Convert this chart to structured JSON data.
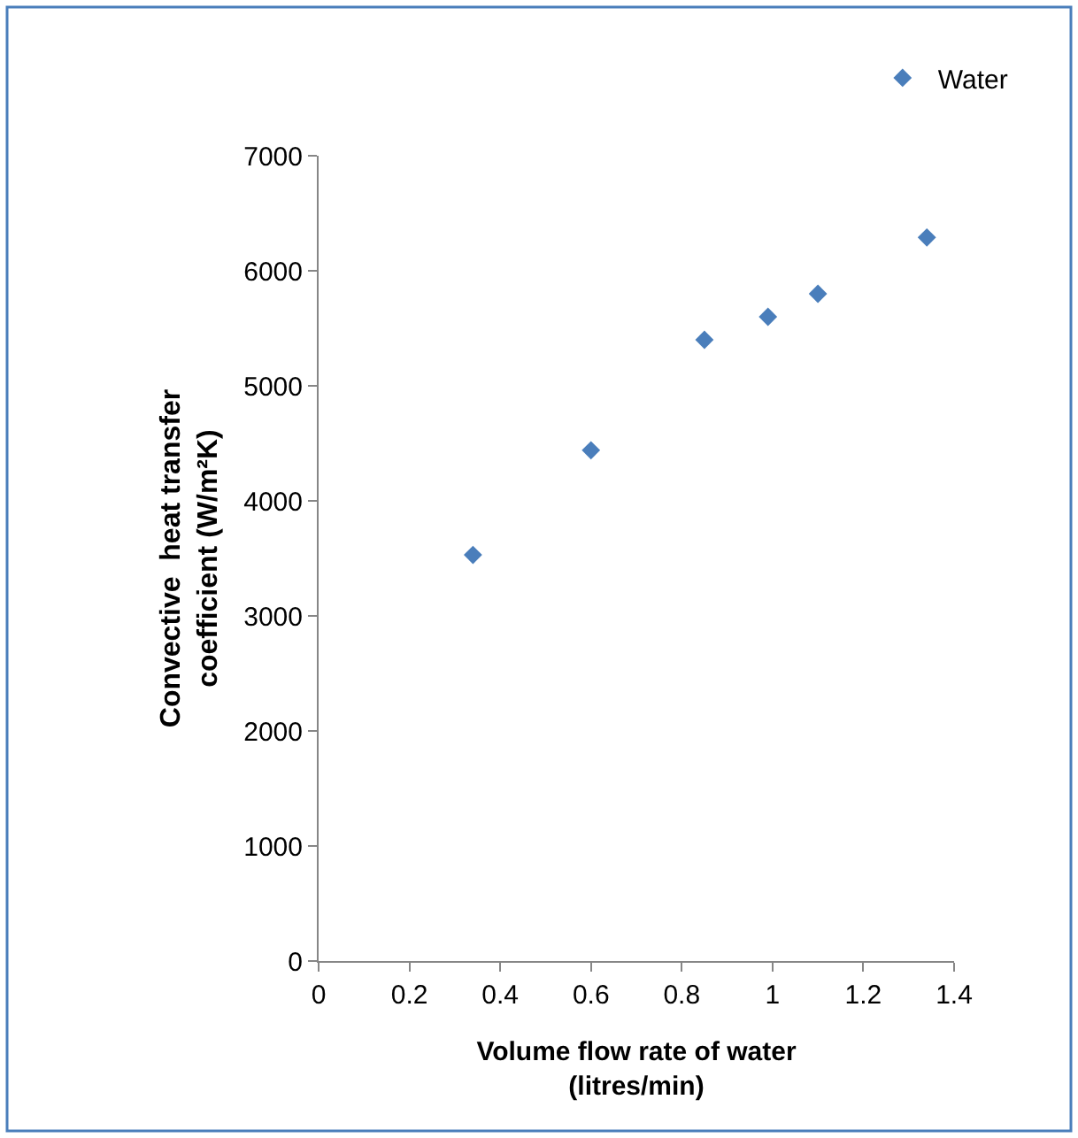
{
  "chart_data": {
    "type": "scatter",
    "xlabel": "Volume flow rate of water\n(litres/min)",
    "ylabel": "Convective  heat transfer\ncoefficient (W/m²K)",
    "series": [
      {
        "name": "Water",
        "color": "#4a7ebb",
        "x": [
          0.34,
          0.6,
          0.85,
          0.99,
          1.1,
          1.34
        ],
        "values": [
          3530,
          4440,
          5400,
          5600,
          5800,
          6290
        ]
      }
    ],
    "xlim": [
      0,
      1.4
    ],
    "xticks": [
      0,
      0.2,
      0.4,
      0.6,
      0.8,
      1,
      1.2,
      1.4
    ],
    "ylim": [
      0,
      7000
    ],
    "yticks": [
      0,
      1000,
      2000,
      3000,
      4000,
      5000,
      6000,
      7000
    ],
    "legend": "top right",
    "marker": "diamond"
  }
}
